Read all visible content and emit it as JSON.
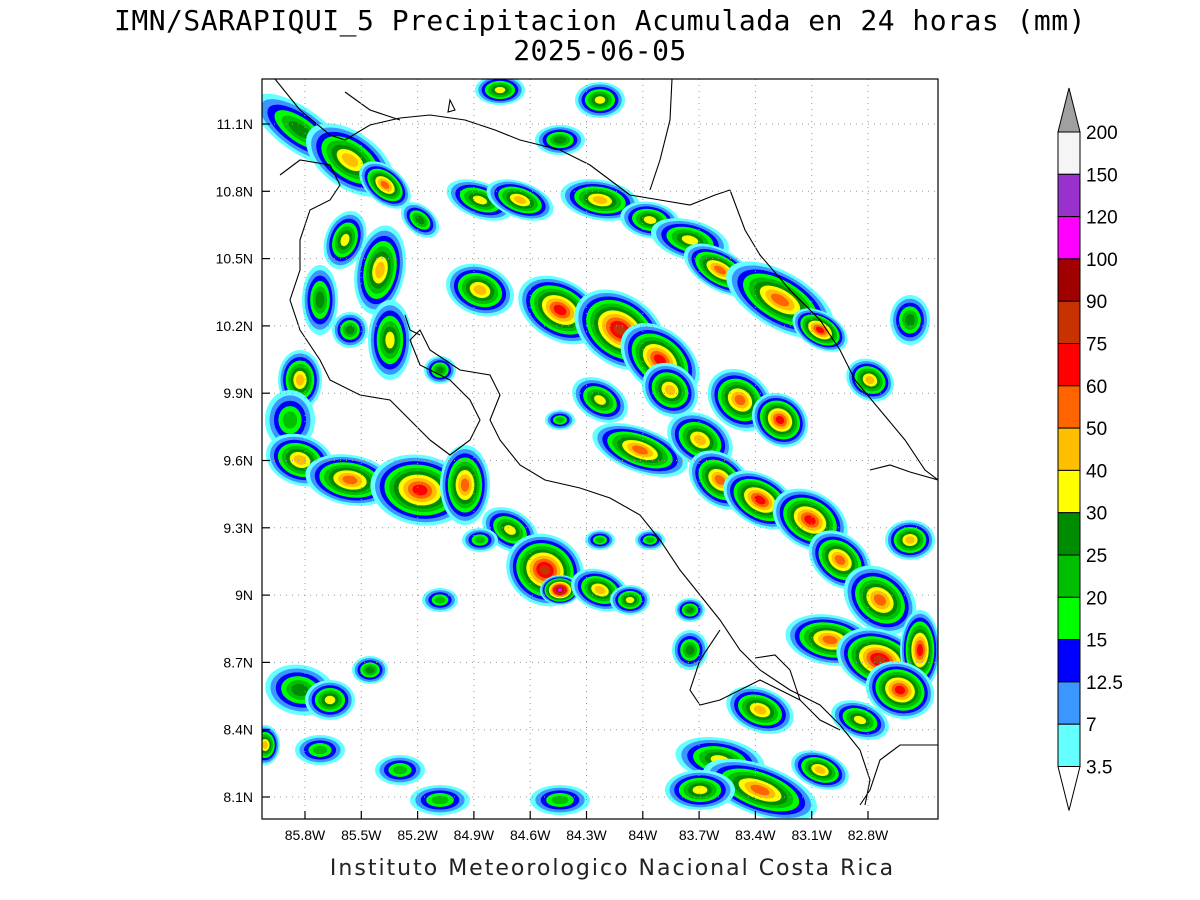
{
  "title_line1": "IMN/SARAPIQUI_5 Precipitacion Acumulada en 24 horas (mm)",
  "title_line2": "2025-06-05",
  "footer": "Instituto Meteorologico Nacional Costa Rica",
  "lat_ticks": [
    "11.1N",
    "10.8N",
    "10.5N",
    "10.2N",
    "9.9N",
    "9.6N",
    "9.3N",
    "9N",
    "8.7N",
    "8.4N",
    "8.1N"
  ],
  "lon_ticks": [
    "85.8W",
    "85.5W",
    "85.2W",
    "84.9W",
    "84.6W",
    "84.3W",
    "84W",
    "83.7W",
    "83.4W",
    "83.1W",
    "82.8W"
  ],
  "legend": {
    "labels": [
      "200",
      "150",
      "120",
      "100",
      "90",
      "75",
      "60",
      "50",
      "40",
      "30",
      "25",
      "20",
      "15",
      "12.5",
      "7",
      "3.5"
    ],
    "colors": [
      "#f5f5f5",
      "#9932cc",
      "#ff00ff",
      "#a00000",
      "#c83200",
      "#ff0000",
      "#ff6400",
      "#ffbe00",
      "#ffff00",
      "#008c00",
      "#00be00",
      "#00ff00",
      "#0000ff",
      "#3c96ff",
      "#64ffff"
    ],
    "over_color": "#a0a0a0",
    "under_color": "#ffffff"
  }
}
